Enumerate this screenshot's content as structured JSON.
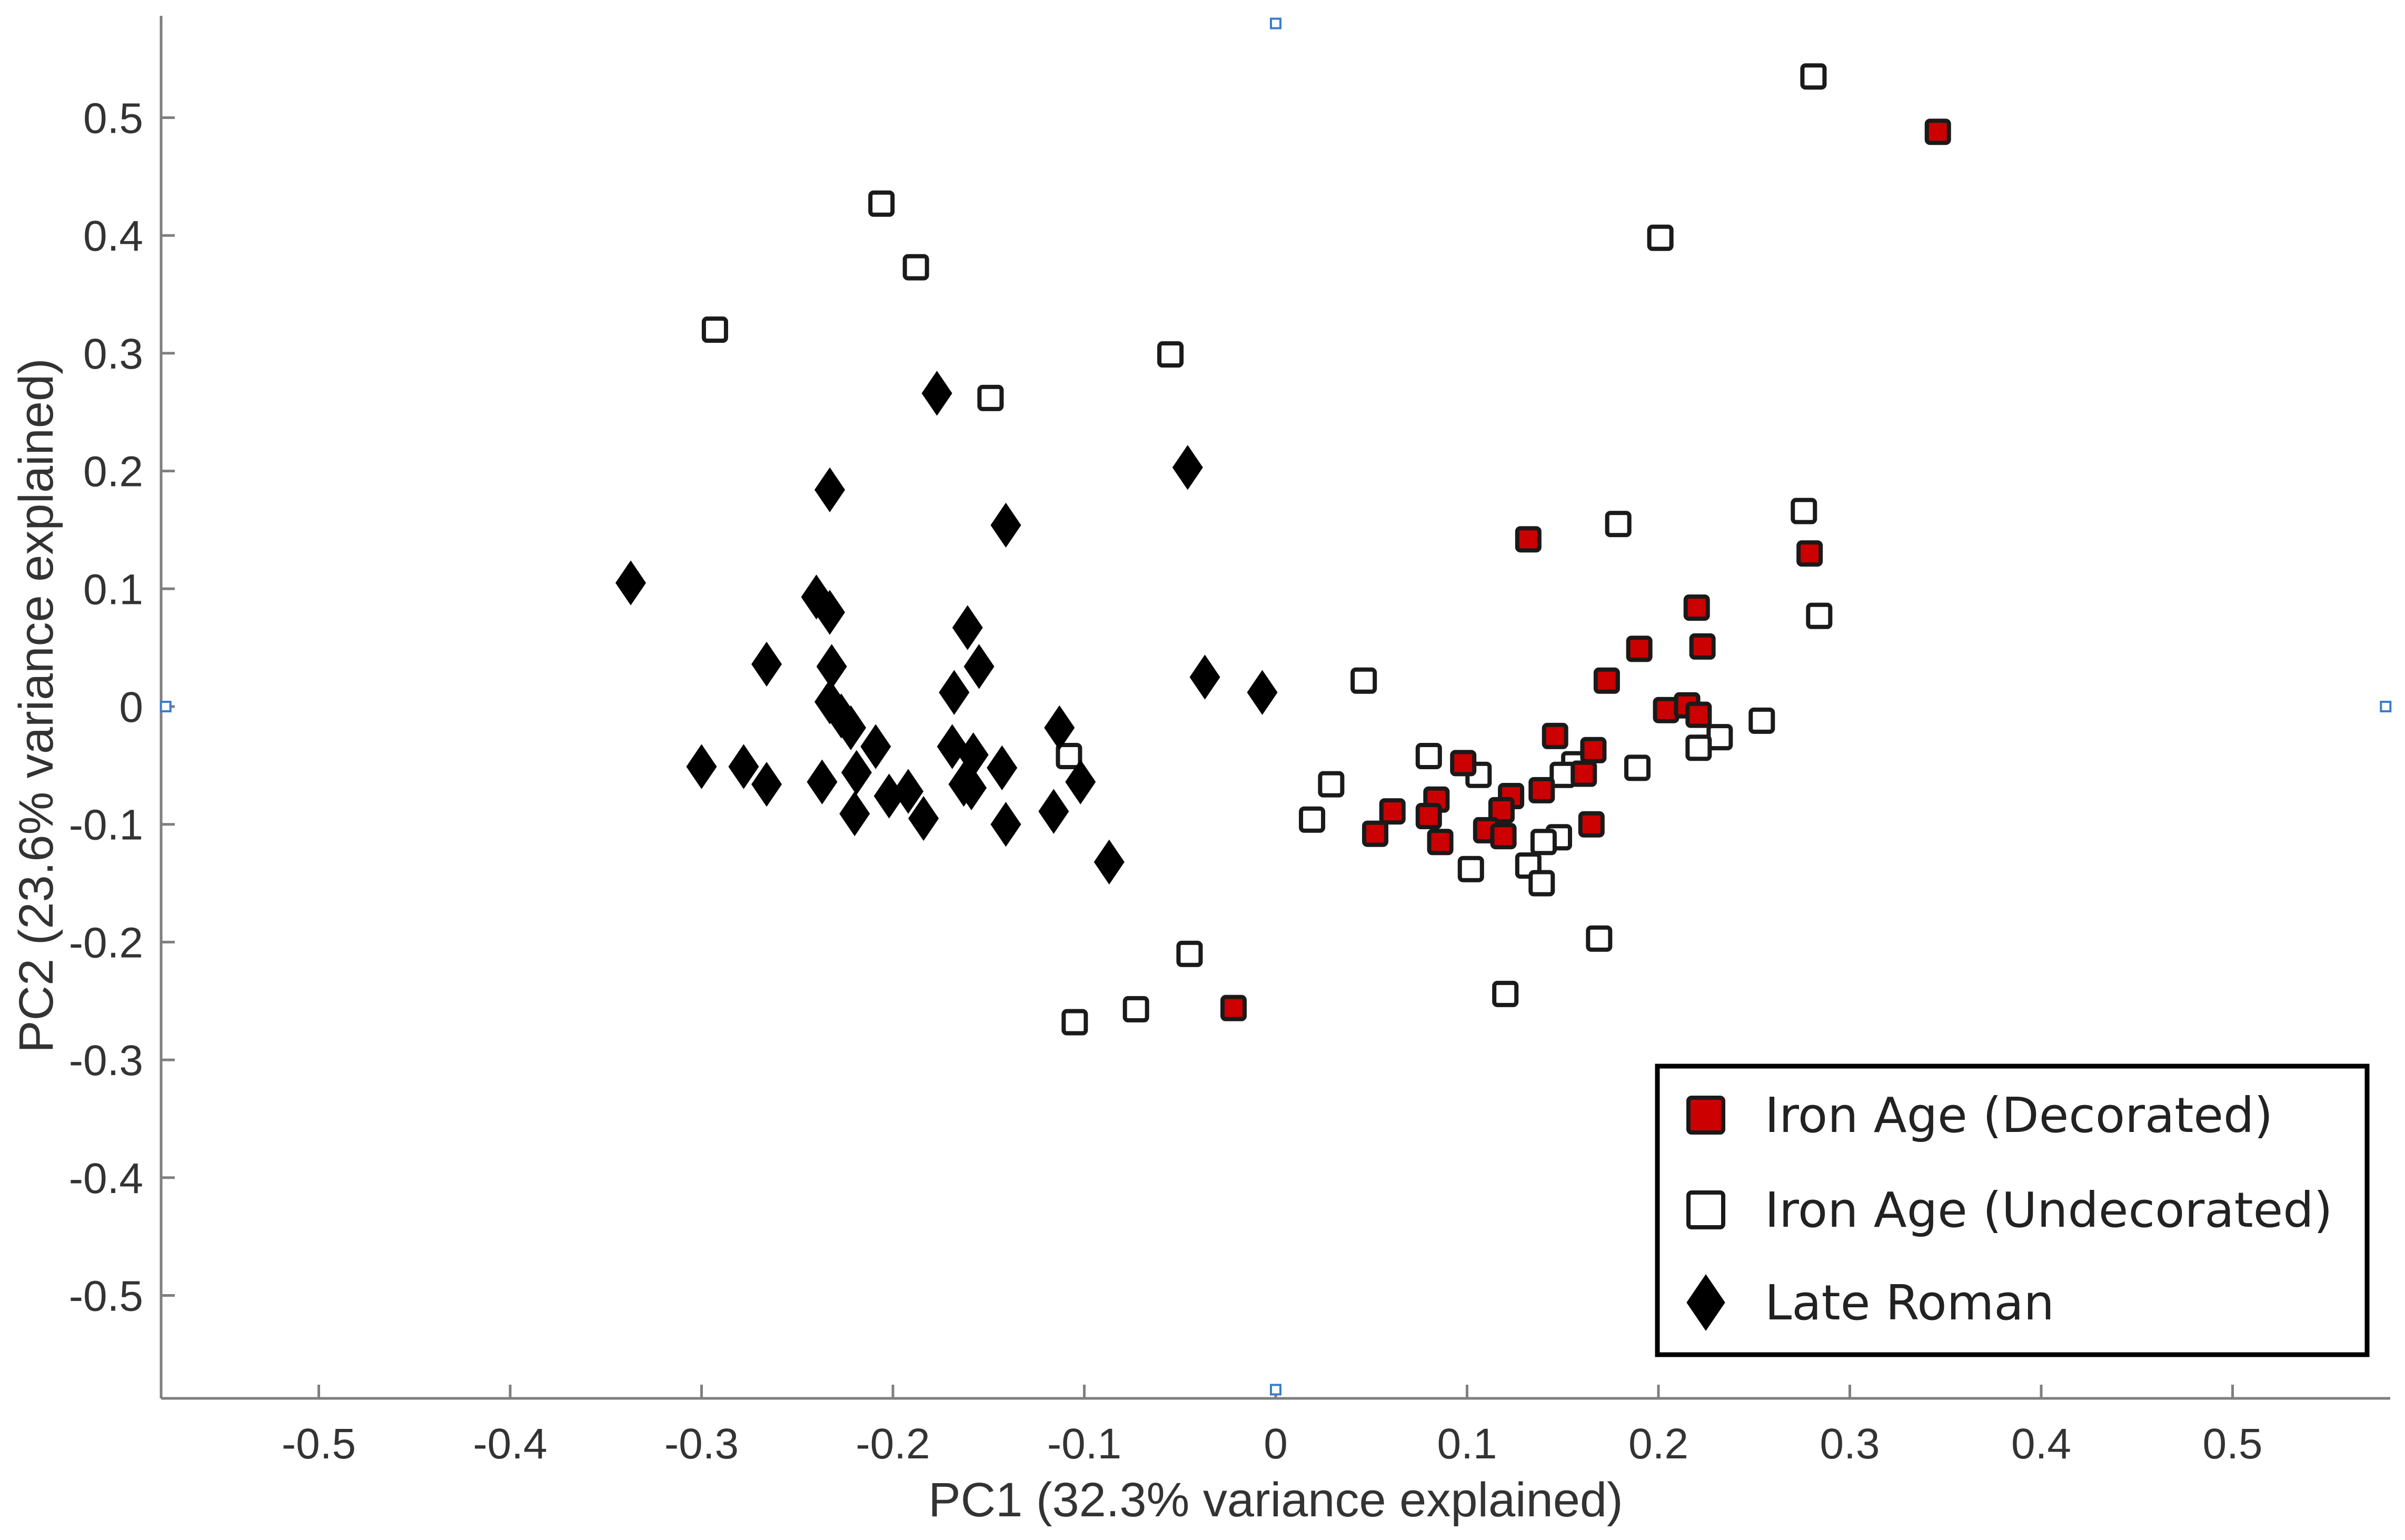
{
  "chart_data": {
    "type": "scatter",
    "xlabel": "PC1 (32.3% variance explained)",
    "ylabel": "PC2 (23.6% variance explained)",
    "xlim": [
      -0.58,
      0.58
    ],
    "ylim": [
      -0.58,
      0.58
    ],
    "x_ticks": [
      -0.5,
      -0.4,
      -0.3,
      -0.2,
      -0.1,
      0,
      0.1,
      0.2,
      0.3,
      0.4,
      0.5
    ],
    "y_ticks": [
      -0.5,
      -0.4,
      -0.3,
      -0.2,
      -0.1,
      0,
      0.1,
      0.2,
      0.3,
      0.4,
      0.5
    ],
    "x_tick_labels": [
      "-0.5",
      "-0.4",
      "-0.3",
      "-0.2",
      "-0.1",
      "0",
      "0.1",
      "0.2",
      "0.3",
      "0.4",
      "0.5"
    ],
    "y_tick_labels": [
      "-0.5",
      "-0.4",
      "-0.3",
      "-0.2",
      "-0.1",
      "0",
      "0.1",
      "0.2",
      "0.3",
      "0.4",
      "0.5"
    ],
    "grid": false,
    "legend_position": "bottom-right",
    "origin_markers": [
      [
        0,
        0.58
      ],
      [
        0,
        -0.58
      ],
      [
        -0.58,
        0
      ],
      [
        0.58,
        0
      ]
    ],
    "series": [
      {
        "name": "Iron Age (Decorated)",
        "marker": "square",
        "color": "#cc0000",
        "points": [
          [
            0.346,
            0.488
          ],
          [
            0.132,
            0.142
          ],
          [
            0.279,
            0.13
          ],
          [
            0.22,
            0.084
          ],
          [
            0.223,
            0.051
          ],
          [
            0.19,
            0.049
          ],
          [
            0.173,
            0.022
          ],
          [
            0.204,
            -0.003
          ],
          [
            0.215,
            0.001
          ],
          [
            0.221,
            -0.007
          ],
          [
            0.146,
            -0.025
          ],
          [
            0.166,
            -0.037
          ],
          [
            0.161,
            -0.057
          ],
          [
            0.098,
            -0.048
          ],
          [
            0.123,
            -0.076
          ],
          [
            0.139,
            -0.071
          ],
          [
            0.084,
            -0.079
          ],
          [
            0.061,
            -0.089
          ],
          [
            0.08,
            -0.093
          ],
          [
            0.118,
            -0.088
          ],
          [
            0.052,
            -0.108
          ],
          [
            0.086,
            -0.115
          ],
          [
            0.11,
            -0.105
          ],
          [
            0.119,
            -0.11
          ],
          [
            0.165,
            -0.1
          ],
          [
            -0.022,
            -0.256
          ]
        ]
      },
      {
        "name": "Iron Age (Undecorated)",
        "marker": "open-square",
        "color": "#000000",
        "points": [
          [
            0.281,
            0.535
          ],
          [
            0.201,
            0.398
          ],
          [
            -0.206,
            0.427
          ],
          [
            -0.188,
            0.373
          ],
          [
            -0.293,
            0.32
          ],
          [
            -0.055,
            0.299
          ],
          [
            -0.149,
            0.262
          ],
          [
            0.276,
            0.166
          ],
          [
            0.179,
            0.155
          ],
          [
            0.284,
            0.077
          ],
          [
            0.046,
            0.022
          ],
          [
            0.254,
            -0.012
          ],
          [
            0.232,
            -0.026
          ],
          [
            0.221,
            -0.035
          ],
          [
            0.189,
            -0.052
          ],
          [
            0.08,
            -0.042
          ],
          [
            0.156,
            -0.049
          ],
          [
            0.15,
            -0.058
          ],
          [
            0.106,
            -0.058
          ],
          [
            0.029,
            -0.066
          ],
          [
            0.019,
            -0.096
          ],
          [
            0.148,
            -0.111
          ],
          [
            0.14,
            -0.115
          ],
          [
            0.102,
            -0.138
          ],
          [
            0.132,
            -0.135
          ],
          [
            0.139,
            -0.15
          ],
          [
            0.169,
            -0.197
          ],
          [
            -0.108,
            -0.042
          ],
          [
            -0.045,
            -0.21
          ],
          [
            -0.073,
            -0.257
          ],
          [
            -0.105,
            -0.268
          ],
          [
            0.12,
            -0.244
          ]
        ]
      },
      {
        "name": "Late Roman",
        "marker": "diamond",
        "color": "#000000",
        "points": [
          [
            -0.337,
            0.105
          ],
          [
            -0.3,
            -0.051
          ],
          [
            -0.278,
            -0.051
          ],
          [
            -0.266,
            0.036
          ],
          [
            -0.266,
            -0.066
          ],
          [
            -0.24,
            0.093
          ],
          [
            -0.233,
            0.08
          ],
          [
            -0.233,
            0.184
          ],
          [
            -0.232,
            0.034
          ],
          [
            -0.233,
            0.004
          ],
          [
            -0.227,
            -0.008
          ],
          [
            -0.222,
            -0.018
          ],
          [
            -0.237,
            -0.064
          ],
          [
            -0.219,
            -0.056
          ],
          [
            -0.22,
            -0.091
          ],
          [
            -0.209,
            -0.034
          ],
          [
            -0.202,
            -0.076
          ],
          [
            -0.192,
            -0.072
          ],
          [
            -0.184,
            -0.095
          ],
          [
            -0.177,
            0.266
          ],
          [
            -0.169,
            -0.034
          ],
          [
            -0.168,
            0.012
          ],
          [
            -0.161,
            0.067
          ],
          [
            -0.163,
            -0.066
          ],
          [
            -0.158,
            -0.041
          ],
          [
            -0.155,
            0.034
          ],
          [
            -0.159,
            -0.069
          ],
          [
            -0.143,
            -0.052
          ],
          [
            -0.141,
            0.154
          ],
          [
            -0.141,
            -0.1
          ],
          [
            -0.113,
            -0.018
          ],
          [
            -0.116,
            -0.089
          ],
          [
            -0.102,
            -0.064
          ],
          [
            -0.087,
            -0.132
          ],
          [
            -0.046,
            0.203
          ],
          [
            -0.037,
            0.025
          ],
          [
            -0.007,
            0.012
          ]
        ]
      }
    ]
  }
}
